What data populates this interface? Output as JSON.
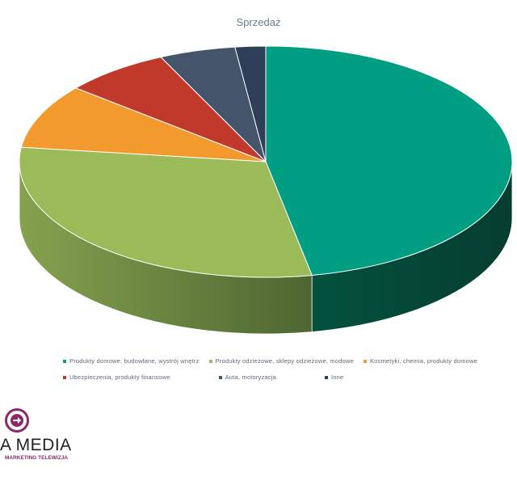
{
  "chart_data": {
    "type": "pie",
    "title": "Sprzedaż",
    "three_d": true,
    "legend_position": "bottom",
    "series": [
      {
        "label": "Produkty domowe, budowlane, wystrój wnętrz",
        "value": 47.0,
        "color": "#009e82"
      },
      {
        "label": "Produkty odzieżowe, sklepy odzieżowe, modowe",
        "value": 30.0,
        "color": "#9bbb59"
      },
      {
        "label": "Kosmetyki, chemia, produkty domowe",
        "value": 9.0,
        "color": "#f29a2e"
      },
      {
        "label": "Ubezpieczenia, produkty finansowe",
        "value": 7.0,
        "color": "#c0392b"
      },
      {
        "label": "Auta, motoryzacja",
        "value": 5.0,
        "color": "#44546a"
      },
      {
        "label": "Inne",
        "value": 2.0,
        "color": "#2e3f59"
      }
    ]
  },
  "logo": {
    "name": "A MEDIA",
    "tagline": "MARKETING TELEWIZJA",
    "color": "#8a2a6a"
  }
}
